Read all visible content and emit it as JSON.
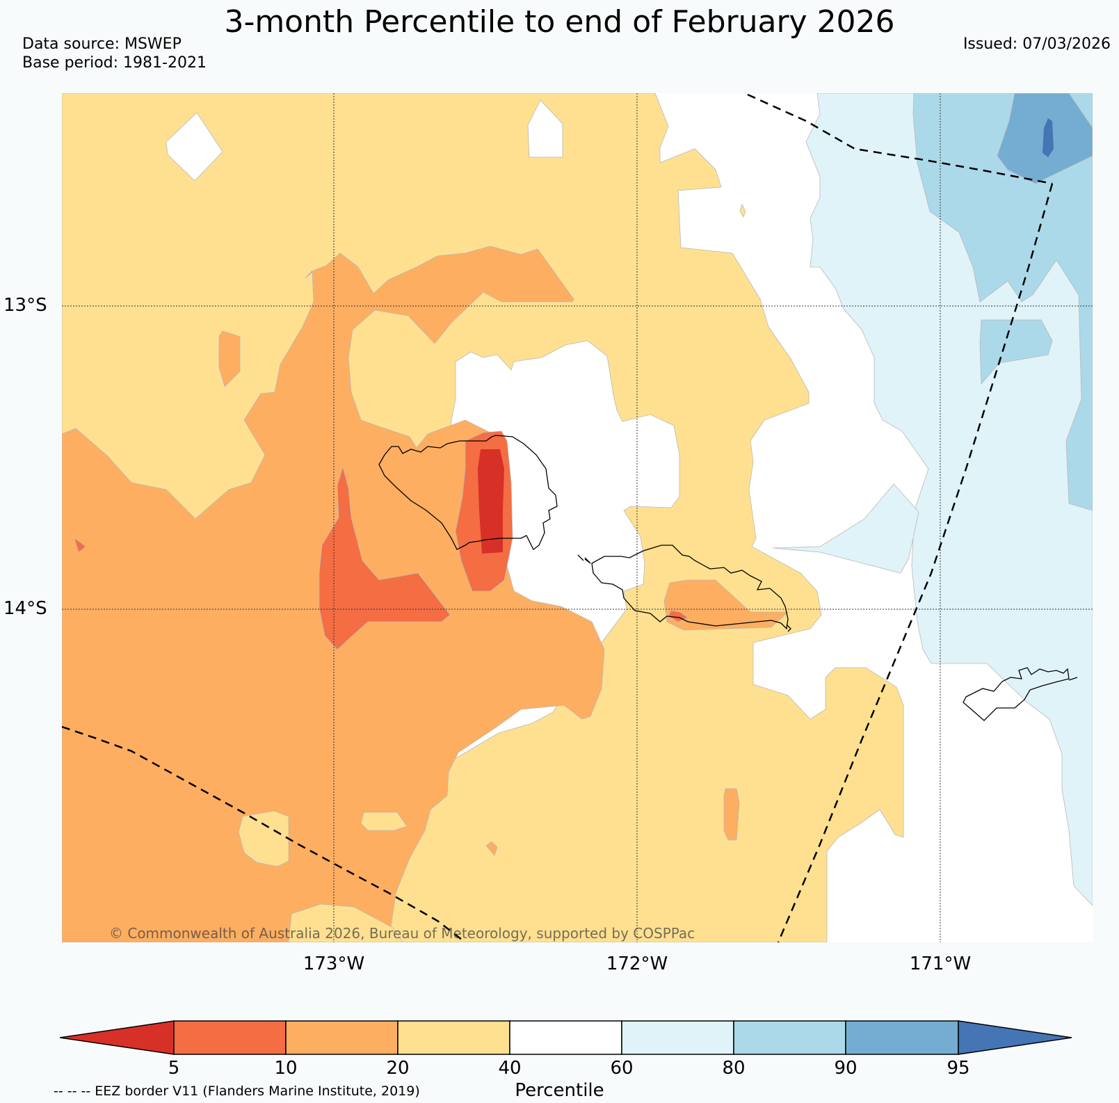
{
  "title": "3-month Percentile to end of February 2026",
  "data_source": "Data source: MSWEP",
  "base_period": "Base period: 1981-2021",
  "issued": "Issued: 07/03/2026",
  "lat_labels": [
    "13°S",
    "14°S"
  ],
  "lon_labels": [
    "173°W",
    "172°W",
    "171°W"
  ],
  "copyright": "© Commonwealth of Australia 2026, Bureau of Meteorology, supported by COSPPac",
  "colorbar": {
    "label": "Percentile",
    "ticks": [
      "5",
      "10",
      "20",
      "40",
      "60",
      "80",
      "90",
      "95"
    ],
    "colors": [
      "#d73027",
      "#f46d43",
      "#fdae61",
      "#fee090",
      "#ffffff",
      "#e0f3f8",
      "#abd9e9",
      "#74add1",
      "#4575b4"
    ]
  },
  "eez_note": "-- -- -- EEZ border V11 (Flanders Marine Institute, 2019)"
}
